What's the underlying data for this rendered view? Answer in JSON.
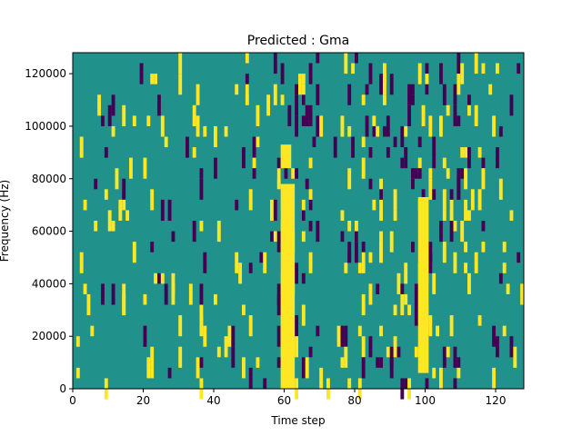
{
  "chart_data": {
    "type": "heatmap",
    "title": "Predicted : Gma",
    "xlabel": "Time step",
    "ylabel": "Frequency (Hz)",
    "xlim": [
      0,
      128
    ],
    "ylim": [
      0,
      128000
    ],
    "x_ticks": [
      0,
      20,
      40,
      60,
      80,
      100,
      120
    ],
    "y_ticks": [
      0,
      20000,
      40000,
      60000,
      80000,
      100000,
      120000
    ],
    "x_tick_labels": [
      "0",
      "20",
      "40",
      "60",
      "80",
      "100",
      "120"
    ],
    "y_tick_labels": [
      "0",
      "20000",
      "40000",
      "60000",
      "80000",
      "100000",
      "120000"
    ],
    "grid": false,
    "legend": "none",
    "colormap": "viridis",
    "colors": {
      "background": "#21918c",
      "high": "#fde725",
      "low": "#440154"
    },
    "rows": 32,
    "cols": 128,
    "bands": [
      {
        "name": "Gma",
        "x_range": [
          59,
          63
        ],
        "y_range": [
          0,
          78000
        ],
        "value": "high"
      },
      {
        "name": "Gma",
        "x_range": [
          98,
          101
        ],
        "y_range": [
          6000,
          73000
        ],
        "value": "high"
      },
      {
        "name": "Gma",
        "x_range": [
          59,
          62
        ],
        "y_range": [
          84000,
          93000
        ],
        "value": "high"
      }
    ]
  }
}
